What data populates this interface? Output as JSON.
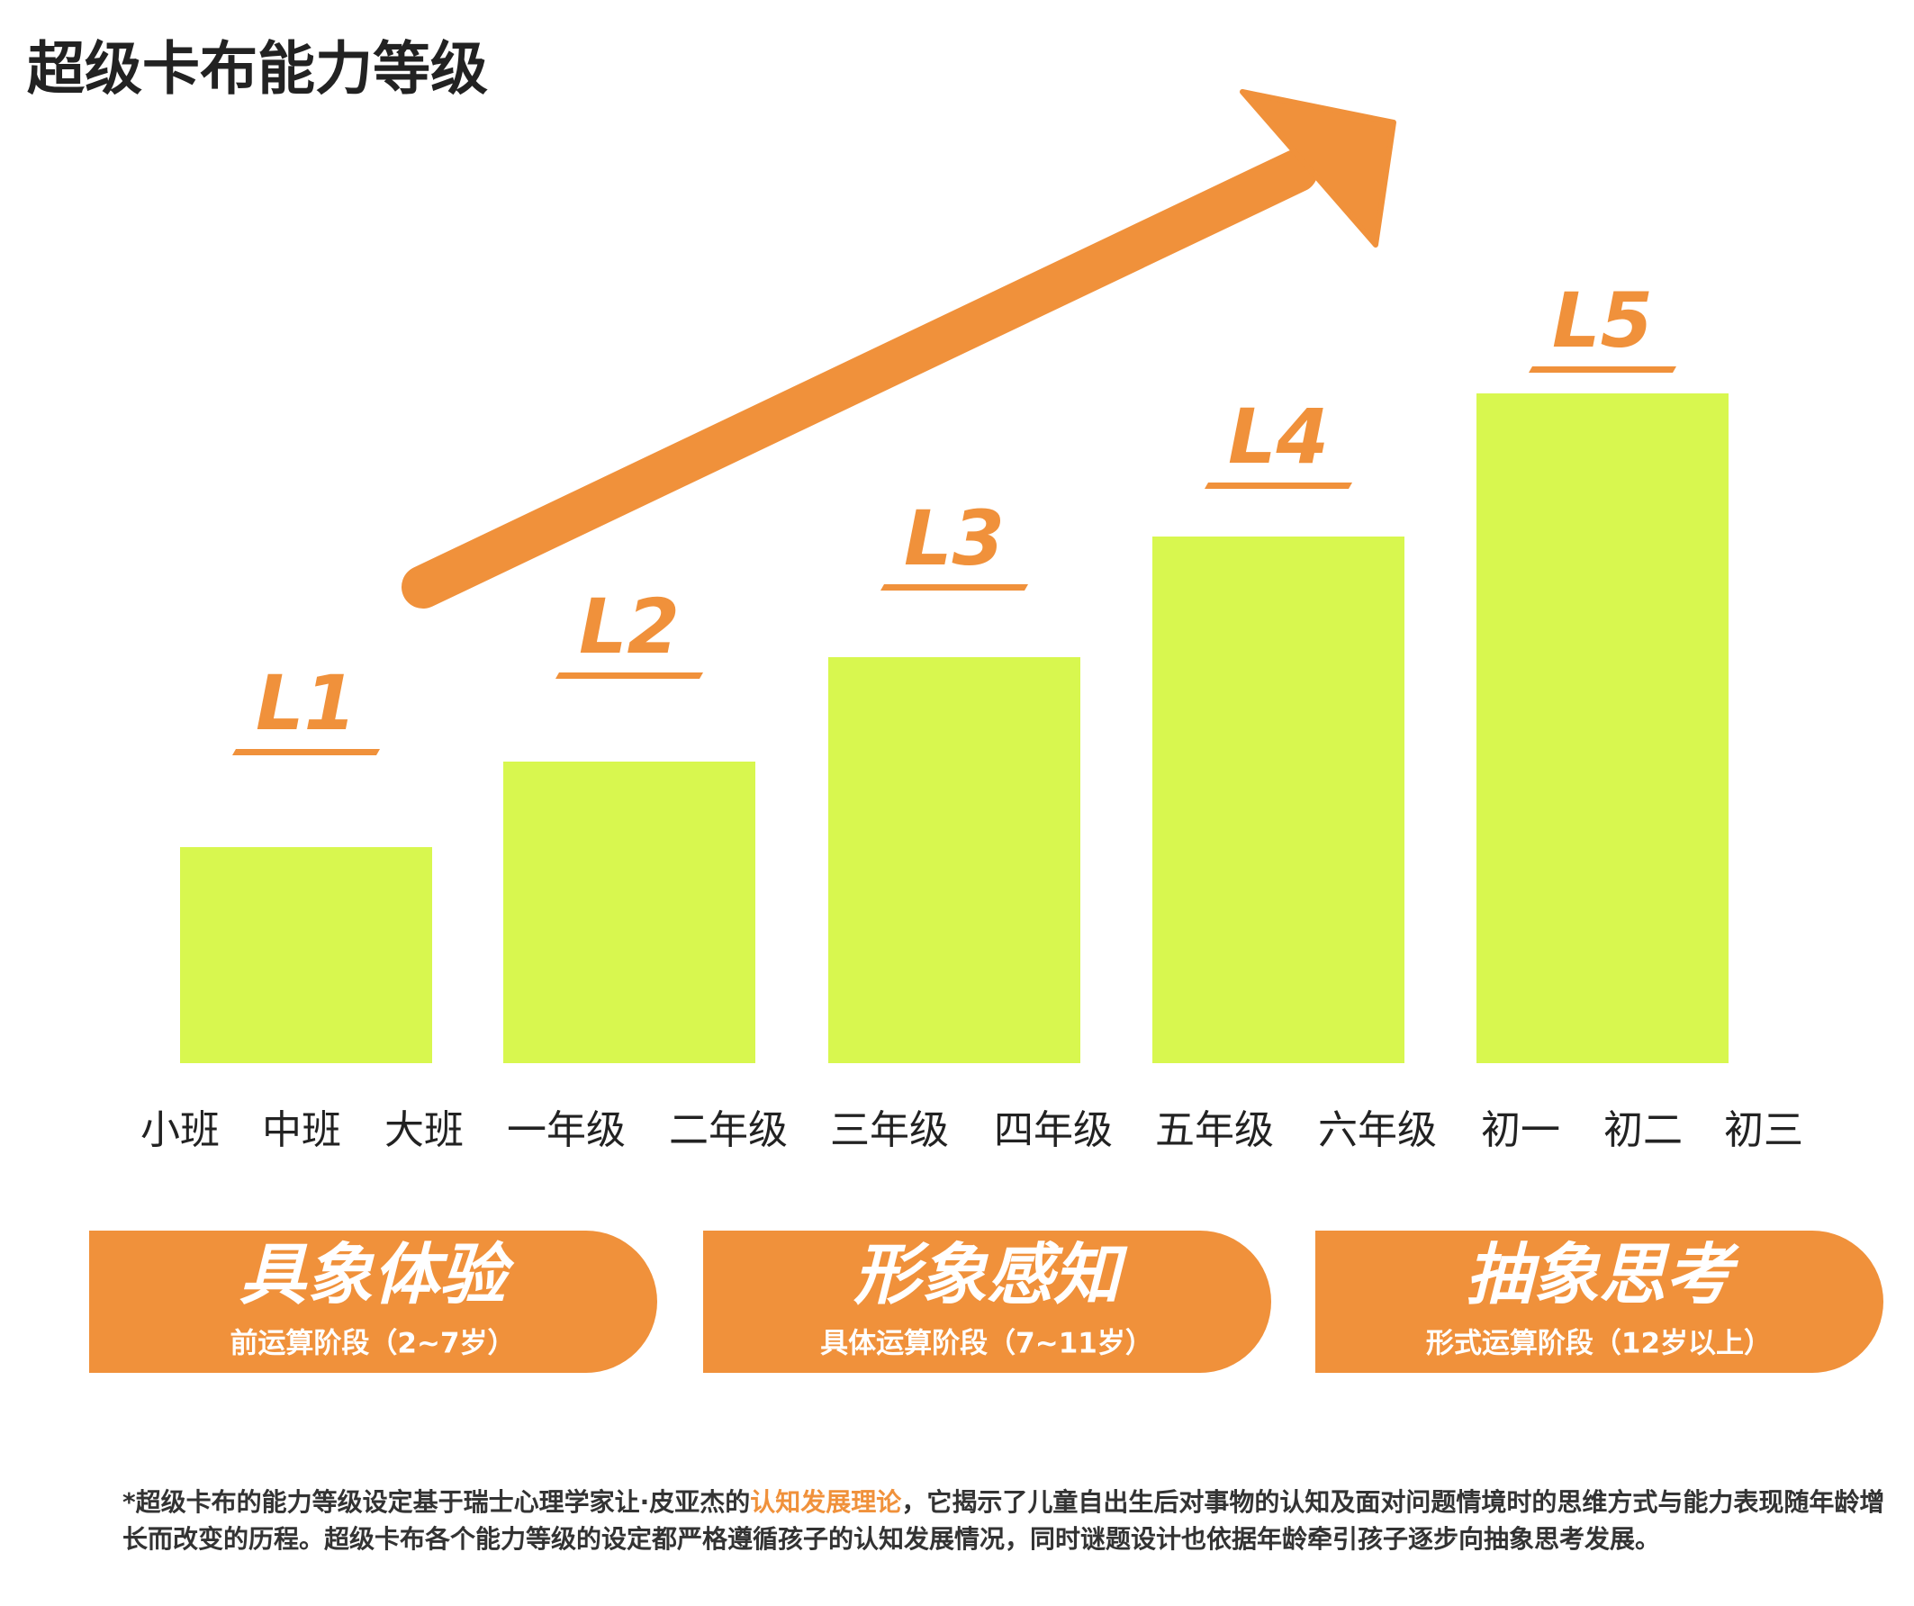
{
  "title": "超级卡布能力等级",
  "levels": [
    "L1",
    "L2",
    "L3",
    "L4",
    "L5"
  ],
  "grades": [
    "小班",
    "中班",
    "大班",
    "一年级",
    "二年级",
    "三年级",
    "四年级",
    "五年级",
    "六年级",
    "初一",
    "初二",
    "初三"
  ],
  "stages": [
    {
      "name": "具象体验",
      "detail": "前运算阶段（2~7岁）"
    },
    {
      "name": "形象感知",
      "detail": "具体运算阶段（7~11岁）"
    },
    {
      "name": "抽象思考",
      "detail": "形式运算阶段（12岁以上）"
    }
  ],
  "footnote": {
    "before": "*超级卡布的能力等级设定基于瑞士心理学家让·皮亚杰的",
    "highlight": "认知发展理论",
    "after": "，它揭示了儿童自出生后对事物的认知及面对问题情境时的思维方式与能力表现随年龄增长而改变的历程。超级卡布各个能力等级的设定都严格遵循孩子的认知发展情况，同时谜题设计也依据年龄牵引孩子逐步向抽象思考发展。"
  }
}
